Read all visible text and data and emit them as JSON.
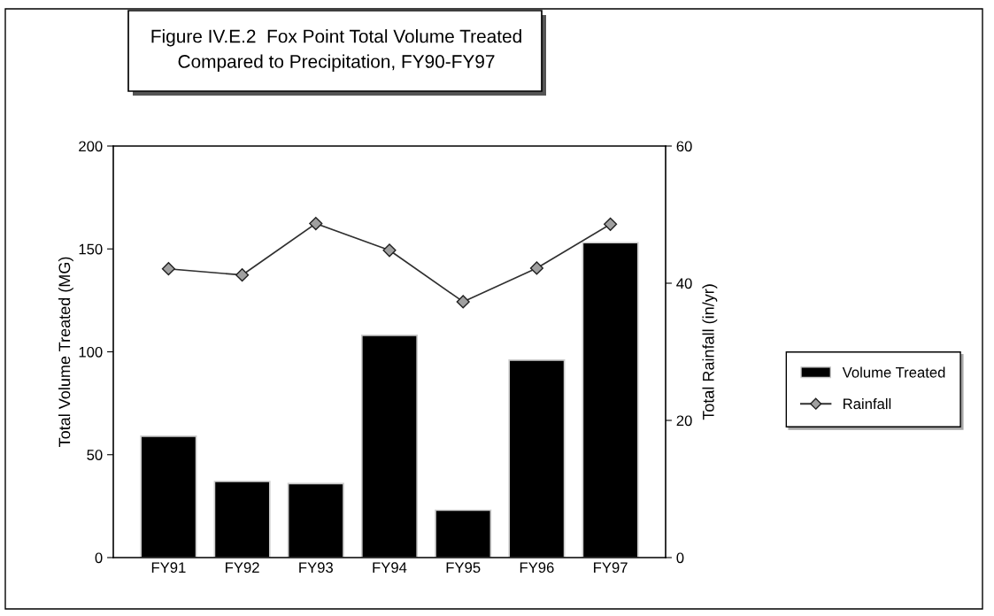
{
  "chart_data": {
    "type": "bar",
    "title": "Figure IV.E.2  Fox Point Total Volume Treated\nCompared to Precipitation, FY90-FY97",
    "ylabel": "Total Volume Treated (MG)",
    "y2label": "Total Rainfall (in/yr)",
    "categories": [
      "FY91",
      "FY92",
      "FY93",
      "FY94",
      "FY95",
      "FY96",
      "FY97"
    ],
    "series": [
      {
        "name": "Volume Treated",
        "color": "#000000",
        "values": [
          59,
          37,
          36,
          108,
          23,
          96,
          153
        ]
      },
      {
        "name": "Rainfall",
        "type": "line",
        "axis": "y2",
        "color": "#a0a0a0",
        "marker": "diamond",
        "values": [
          42.1,
          41.2,
          48.7,
          44.8,
          37.3,
          42.2,
          48.6
        ]
      }
    ],
    "ylim": [
      0,
      200
    ],
    "yticks": [
      0,
      50,
      100,
      150,
      200
    ],
    "y2lim": [
      0,
      60
    ],
    "y2ticks": [
      0,
      20,
      40,
      60
    ],
    "grid": false,
    "legend": "right"
  }
}
